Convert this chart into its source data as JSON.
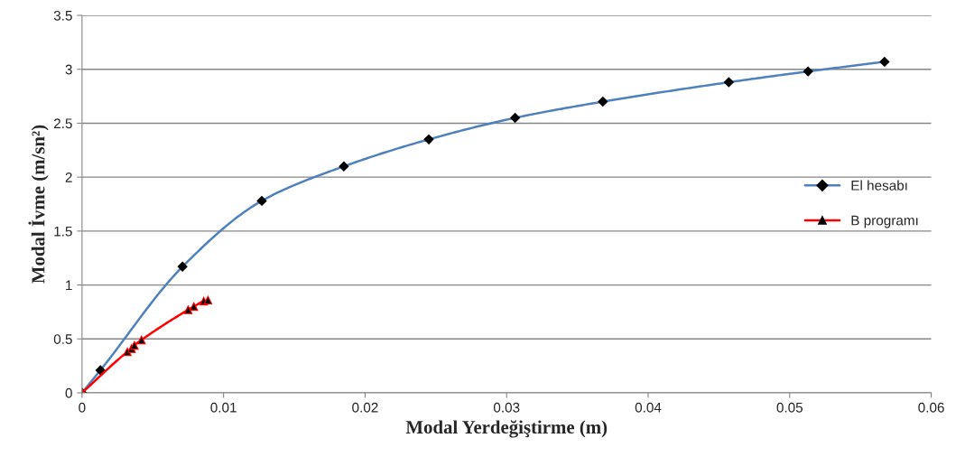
{
  "chart_data": {
    "type": "line",
    "xlabel": "Modal Yerdeğiştirme (m)",
    "ylabel": "Modal İvme (m/sn²)",
    "xlim": [
      0,
      0.06
    ],
    "xticks": [
      0,
      0.01,
      0.02,
      0.03,
      0.04,
      0.05,
      0.06
    ],
    "ylim": [
      0,
      3.5
    ],
    "yticks": [
      0,
      0.5,
      1,
      1.5,
      2,
      2.5,
      3,
      3.5
    ],
    "grid": "y",
    "legend": "right",
    "series": [
      {
        "name": "El hesabı",
        "color": "#4f81bd",
        "marker": "diamond",
        "x": [
          0,
          0.0013,
          0.0071,
          0.0127,
          0.0185,
          0.0245,
          0.0306,
          0.0368,
          0.0457,
          0.0513,
          0.0567
        ],
        "values": [
          0,
          0.21,
          1.17,
          1.78,
          2.1,
          2.35,
          2.55,
          2.7,
          2.88,
          2.98,
          3.07
        ]
      },
      {
        "name": "B programı",
        "color": "#ff0000",
        "marker": "triangle",
        "x": [
          0,
          0.0032,
          0.0035,
          0.0037,
          0.0042,
          0.0075,
          0.0079,
          0.0086,
          0.0089
        ],
        "values": [
          0,
          0.38,
          0.41,
          0.44,
          0.49,
          0.77,
          0.8,
          0.85,
          0.86
        ]
      }
    ]
  }
}
